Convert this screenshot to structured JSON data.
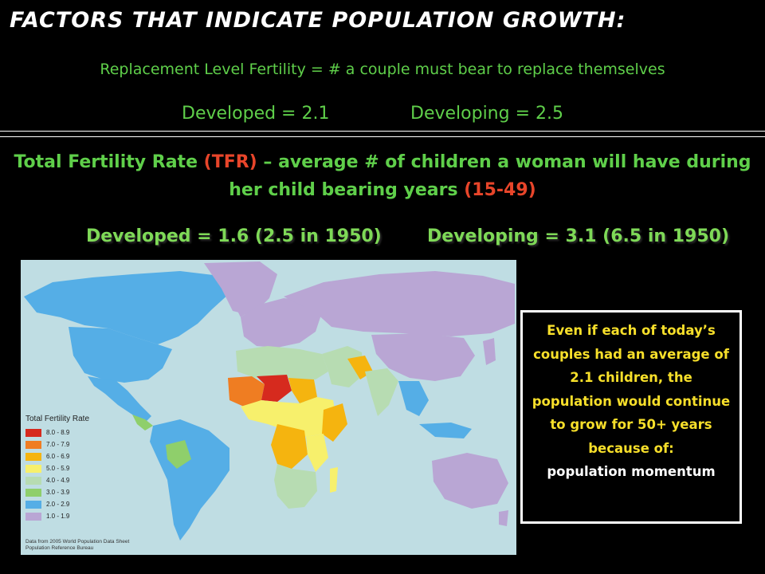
{
  "title": "FACTORS THAT INDICATE POPULATION GROWTH:",
  "replacement": {
    "label": "Replacement Level Fertility = # a couple must bear to replace themselves",
    "developed": "Developed = 2.1",
    "developing": "Developing = 2.5"
  },
  "tfr": {
    "lead": "Total Fertility Rate ",
    "abbr": "(TFR)",
    "definition": " – average # of children a woman will have during her child bearing years ",
    "ages": "(15-49)",
    "developed": "Developed = 1.6 (2.5 in 1950)",
    "developing": "Developing = 3.1 (6.5 in 1950)"
  },
  "map": {
    "legend_title": "Total Fertility Rate",
    "legend": [
      {
        "label": "8.0 - 8.9",
        "color": "#d62a1e"
      },
      {
        "label": "7.0 - 7.9",
        "color": "#ef7d22"
      },
      {
        "label": "6.0 - 6.9",
        "color": "#f5b40f"
      },
      {
        "label": "5.0 - 5.9",
        "color": "#f7f06c"
      },
      {
        "label": "4.0 - 4.9",
        "color": "#b7dcb2"
      },
      {
        "label": "3.0 - 3.9",
        "color": "#8fcf6b"
      },
      {
        "label": "2.0 - 2.9",
        "color": "#55aee6"
      },
      {
        "label": "1.0 - 1.9",
        "color": "#b9a6d4"
      }
    ],
    "source_line1": "Data from 2005 World Population Data Sheet",
    "source_line2": "Population Reference Bureau"
  },
  "callout": {
    "text": "Even if each of today’s couples had an average of 2.1 children, the population would continue to grow for 50+ years because of:",
    "emphasis": "population momentum"
  }
}
